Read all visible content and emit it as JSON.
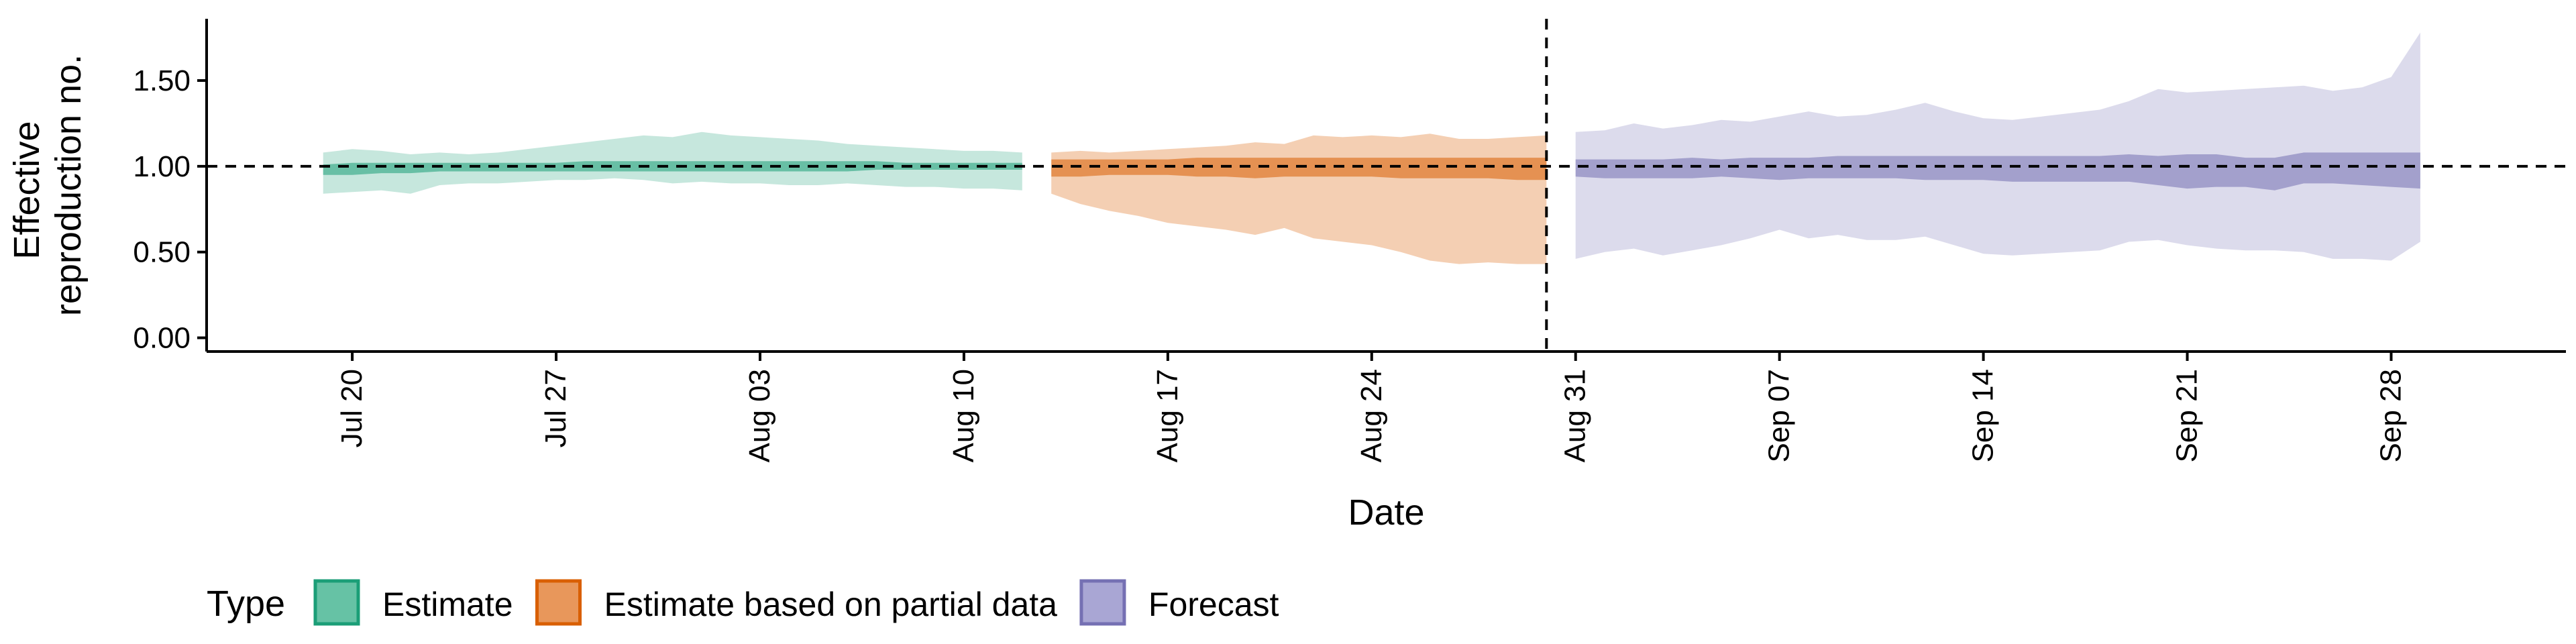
{
  "chart_data": {
    "type": "area",
    "x_axis": {
      "title": "Date",
      "ticks": [
        "Jul 20",
        "Jul 27",
        "Aug 03",
        "Aug 10",
        "Aug 17",
        "Aug 24",
        "Aug 31",
        "Sep 07",
        "Sep 14",
        "Sep 21",
        "Sep 28"
      ],
      "tick_dates": [
        "2020-07-20",
        "2020-07-27",
        "2020-08-03",
        "2020-08-10",
        "2020-08-17",
        "2020-08-24",
        "2020-08-31",
        "2020-09-07",
        "2020-09-14",
        "2020-09-21",
        "2020-09-28"
      ],
      "range": [
        "2020-07-15",
        "2020-10-04"
      ]
    },
    "y_axis": {
      "title_lines": [
        "Effective",
        "reproduction no."
      ],
      "ticks": [
        "0.00",
        "0.50",
        "1.00",
        "1.50"
      ],
      "tick_values": [
        0,
        0.5,
        1,
        1.5
      ],
      "range": [
        -0.08,
        1.86
      ]
    },
    "reference_lines": {
      "horizontal_y": 1.0,
      "vertical_date": "2020-08-30",
      "style": "dashed"
    },
    "legend": {
      "title": "Type",
      "position": "bottom-left",
      "entries": [
        {
          "label": "Estimate",
          "fill": "#66c2a5",
          "stroke": "#1b9e77"
        },
        {
          "label": "Estimate based on partial data",
          "fill": "#e8975b",
          "stroke": "#d95f02"
        },
        {
          "label": "Forecast",
          "fill": "#a9a6d4",
          "stroke": "#7570b3"
        }
      ]
    },
    "series": [
      {
        "name": "Estimate",
        "color": "#1b9e77",
        "outer_opacity": 0.25,
        "inner_opacity": 0.55,
        "x": [
          "2020-07-19",
          "2020-07-20",
          "2020-07-21",
          "2020-07-22",
          "2020-07-23",
          "2020-07-24",
          "2020-07-25",
          "2020-07-26",
          "2020-07-27",
          "2020-07-28",
          "2020-07-29",
          "2020-07-30",
          "2020-07-31",
          "2020-08-01",
          "2020-08-02",
          "2020-08-03",
          "2020-08-04",
          "2020-08-05",
          "2020-08-06",
          "2020-08-07",
          "2020-08-08",
          "2020-08-09",
          "2020-08-10",
          "2020-08-11",
          "2020-08-12"
        ],
        "outer_upper": [
          1.08,
          1.1,
          1.09,
          1.07,
          1.08,
          1.07,
          1.08,
          1.1,
          1.12,
          1.14,
          1.16,
          1.18,
          1.17,
          1.2,
          1.18,
          1.17,
          1.16,
          1.15,
          1.13,
          1.12,
          1.11,
          1.1,
          1.09,
          1.09,
          1.08
        ],
        "outer_lower": [
          0.84,
          0.85,
          0.86,
          0.84,
          0.89,
          0.9,
          0.9,
          0.91,
          0.92,
          0.92,
          0.93,
          0.92,
          0.9,
          0.91,
          0.9,
          0.9,
          0.89,
          0.89,
          0.9,
          0.89,
          0.88,
          0.88,
          0.87,
          0.87,
          0.86
        ],
        "inner_upper": [
          1.01,
          1.02,
          1.02,
          1.02,
          1.02,
          1.02,
          1.02,
          1.02,
          1.02,
          1.03,
          1.03,
          1.03,
          1.03,
          1.03,
          1.03,
          1.03,
          1.03,
          1.03,
          1.03,
          1.03,
          1.02,
          1.02,
          1.02,
          1.02,
          1.02
        ],
        "inner_lower": [
          0.95,
          0.95,
          0.96,
          0.96,
          0.97,
          0.97,
          0.97,
          0.97,
          0.97,
          0.97,
          0.97,
          0.97,
          0.97,
          0.97,
          0.97,
          0.97,
          0.97,
          0.97,
          0.97,
          0.98,
          0.98,
          0.98,
          0.98,
          0.98,
          0.98
        ]
      },
      {
        "name": "Estimate based on partial data",
        "color": "#d95f02",
        "outer_opacity": 0.3,
        "inner_opacity": 0.55,
        "x": [
          "2020-08-13",
          "2020-08-14",
          "2020-08-15",
          "2020-08-16",
          "2020-08-17",
          "2020-08-18",
          "2020-08-19",
          "2020-08-20",
          "2020-08-21",
          "2020-08-22",
          "2020-08-23",
          "2020-08-24",
          "2020-08-25",
          "2020-08-26",
          "2020-08-27",
          "2020-08-28",
          "2020-08-29",
          "2020-08-30"
        ],
        "outer_upper": [
          1.08,
          1.09,
          1.08,
          1.09,
          1.1,
          1.11,
          1.12,
          1.14,
          1.13,
          1.18,
          1.17,
          1.18,
          1.17,
          1.19,
          1.16,
          1.16,
          1.17,
          1.18
        ],
        "outer_lower": [
          0.84,
          0.78,
          0.74,
          0.71,
          0.67,
          0.65,
          0.63,
          0.6,
          0.64,
          0.58,
          0.56,
          0.54,
          0.5,
          0.45,
          0.43,
          0.44,
          0.43,
          0.43
        ],
        "inner_upper": [
          1.04,
          1.04,
          1.04,
          1.04,
          1.04,
          1.05,
          1.05,
          1.05,
          1.05,
          1.05,
          1.05,
          1.05,
          1.05,
          1.05,
          1.05,
          1.05,
          1.05,
          1.05
        ],
        "inner_lower": [
          0.94,
          0.94,
          0.95,
          0.95,
          0.95,
          0.94,
          0.94,
          0.93,
          0.94,
          0.94,
          0.94,
          0.94,
          0.93,
          0.93,
          0.93,
          0.93,
          0.92,
          0.92
        ]
      },
      {
        "name": "Forecast",
        "color": "#7570b3",
        "outer_opacity": 0.25,
        "inner_opacity": 0.55,
        "x": [
          "2020-08-31",
          "2020-09-01",
          "2020-09-02",
          "2020-09-03",
          "2020-09-04",
          "2020-09-05",
          "2020-09-06",
          "2020-09-07",
          "2020-09-08",
          "2020-09-09",
          "2020-09-10",
          "2020-09-11",
          "2020-09-12",
          "2020-09-13",
          "2020-09-14",
          "2020-09-15",
          "2020-09-16",
          "2020-09-17",
          "2020-09-18",
          "2020-09-19",
          "2020-09-20",
          "2020-09-21",
          "2020-09-22",
          "2020-09-23",
          "2020-09-24",
          "2020-09-25",
          "2020-09-26",
          "2020-09-27",
          "2020-09-28",
          "2020-09-29"
        ],
        "outer_upper": [
          1.2,
          1.21,
          1.25,
          1.22,
          1.24,
          1.27,
          1.26,
          1.29,
          1.32,
          1.29,
          1.3,
          1.33,
          1.37,
          1.32,
          1.28,
          1.27,
          1.29,
          1.31,
          1.33,
          1.38,
          1.45,
          1.43,
          1.44,
          1.45,
          1.46,
          1.47,
          1.44,
          1.46,
          1.52,
          1.78
        ],
        "outer_lower": [
          0.46,
          0.5,
          0.52,
          0.48,
          0.51,
          0.54,
          0.58,
          0.63,
          0.58,
          0.6,
          0.57,
          0.57,
          0.59,
          0.54,
          0.49,
          0.48,
          0.49,
          0.5,
          0.51,
          0.56,
          0.57,
          0.54,
          0.52,
          0.51,
          0.51,
          0.5,
          0.46,
          0.46,
          0.45,
          0.56
        ],
        "inner_upper": [
          1.04,
          1.04,
          1.04,
          1.04,
          1.05,
          1.04,
          1.05,
          1.05,
          1.05,
          1.06,
          1.06,
          1.06,
          1.06,
          1.06,
          1.06,
          1.06,
          1.06,
          1.06,
          1.06,
          1.07,
          1.06,
          1.07,
          1.07,
          1.05,
          1.05,
          1.08,
          1.08,
          1.08,
          1.08,
          1.08
        ],
        "inner_lower": [
          0.94,
          0.93,
          0.93,
          0.93,
          0.93,
          0.94,
          0.93,
          0.92,
          0.93,
          0.93,
          0.93,
          0.93,
          0.92,
          0.92,
          0.92,
          0.91,
          0.91,
          0.91,
          0.91,
          0.91,
          0.89,
          0.87,
          0.88,
          0.88,
          0.86,
          0.9,
          0.9,
          0.89,
          0.88,
          0.87
        ]
      }
    ]
  }
}
